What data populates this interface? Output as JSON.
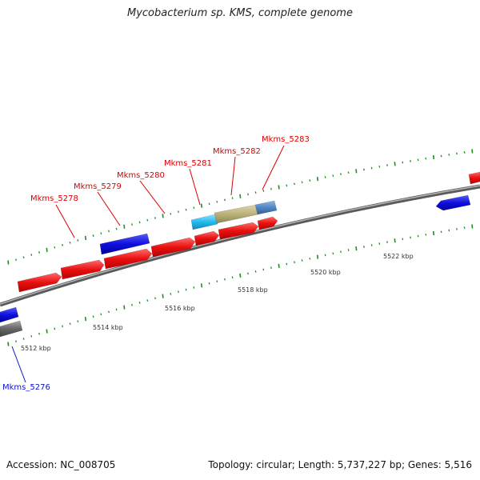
{
  "title": "Mycobacterium sp. KMS, complete genome",
  "footer": {
    "accession": "Accession: NC_008705",
    "topology": "Topology: circular; Length: 5,737,227 bp; Genes: 5,516"
  },
  "colors": {
    "red": "#ee1111",
    "blue": "#1111dd",
    "cyan": "#22bbee",
    "khaki": "#bbb27a",
    "steelblue": "#4f86c6",
    "grey": "#666666",
    "tick_green": "#228b22",
    "label_red": "#dd0000",
    "label_blue": "#1111cc"
  },
  "scale_labels": [
    "5512 kbp",
    "5514 kbp",
    "5516 kbp",
    "5518 kbp",
    "5520 kbp",
    "5522 kbp"
  ],
  "gene_labels": [
    {
      "id": "g5276",
      "text": "Mkms_5276",
      "color": "blue"
    },
    {
      "id": "g5278",
      "text": "Mkms_5278",
      "color": "red"
    },
    {
      "id": "g5279",
      "text": "Mkms_5279",
      "color": "red"
    },
    {
      "id": "g5280",
      "text": "Mkms_5280",
      "color": "red"
    },
    {
      "id": "g5281",
      "text": "Mkms_5281",
      "color": "red"
    },
    {
      "id": "g5282",
      "text": "Mkms_5282",
      "color": "red"
    },
    {
      "id": "g5283",
      "text": "Mkms_5283",
      "color": "red"
    }
  ]
}
